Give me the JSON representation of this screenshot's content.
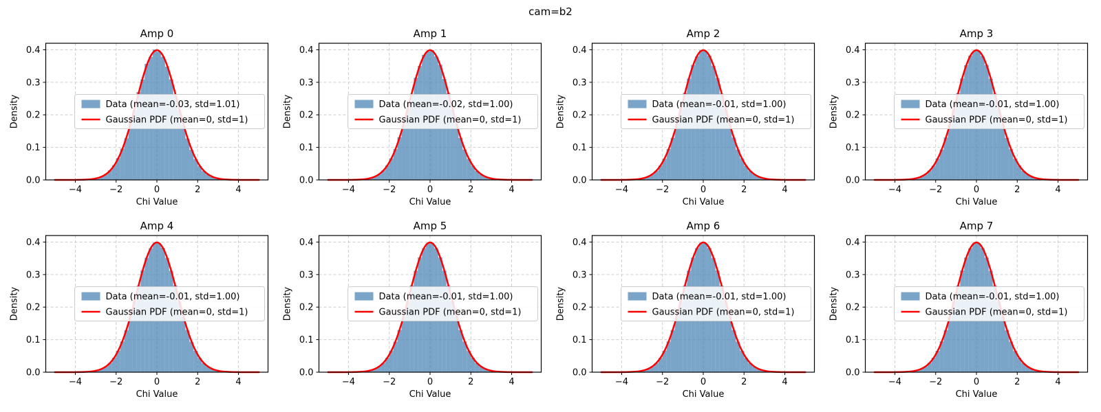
{
  "suptitle": "cam=b2",
  "colors": {
    "hist_fill": "rgba(70,130,180,0.72)",
    "hist_base": "#4682B4",
    "gauss_line": "#ff0000",
    "grid": "#cdcdcd",
    "spine": "#000000",
    "legend_bg": "rgba(255,255,255,0.85)",
    "legend_border": "#cccccc",
    "background": "#ffffff"
  },
  "axes_common": {
    "xlabel": "Chi Value",
    "ylabel": "Density",
    "xticks": [
      -4,
      -2,
      0,
      2,
      4
    ],
    "yticks": [
      0.0,
      0.1,
      0.2,
      0.3,
      0.4
    ],
    "xlim": [
      -5.45,
      5.45
    ],
    "ylim": [
      0,
      0.42
    ],
    "grid": true,
    "grid_style": "dashed",
    "legend_loc": "center right"
  },
  "hist_common": {
    "bin_start": -5,
    "bin_width": 0.2,
    "n_bins": 50
  },
  "gaussian": {
    "mean": 0,
    "std": 1
  },
  "chart_data": [
    {
      "type": "histogram",
      "title": "Amp 0",
      "stats": {
        "mean": -0.03,
        "std": 1.01
      },
      "legend": [
        "Data (mean=-0.03, std=1.01)",
        "Gaussian PDF (mean=0, std=1)"
      ],
      "hist": [
        0.0,
        0.0,
        0.0001,
        0.0001,
        0.0002,
        0.0003,
        0.0006,
        0.0011,
        0.002,
        0.0036,
        0.0066,
        0.0112,
        0.0181,
        0.0297,
        0.0452,
        0.0671,
        0.0962,
        0.1281,
        0.1756,
        0.2145,
        0.2703,
        0.309,
        0.3568,
        0.3783,
        0.4005,
        0.3942,
        0.3788,
        0.3481,
        0.3091,
        0.2633,
        0.2141,
        0.1693,
        0.1273,
        0.0923,
        0.0641,
        0.0428,
        0.0271,
        0.0168,
        0.0098,
        0.0057,
        0.003,
        0.0016,
        0.0008,
        0.0004,
        0.0002,
        0.0001,
        0.0,
        0.0,
        0.0,
        0.0
      ]
    },
    {
      "type": "histogram",
      "title": "Amp 1",
      "stats": {
        "mean": -0.02,
        "std": 1.0
      },
      "legend": [
        "Data (mean=-0.02, std=1.00)",
        "Gaussian PDF (mean=0, std=1)"
      ],
      "hist": [
        0.0,
        0.0,
        0.0,
        0.0001,
        0.0001,
        0.0002,
        0.0005,
        0.001,
        0.0018,
        0.0031,
        0.0063,
        0.0109,
        0.0172,
        0.029,
        0.0447,
        0.0663,
        0.0948,
        0.1312,
        0.1701,
        0.2202,
        0.2645,
        0.314,
        0.3505,
        0.3842,
        0.3951,
        0.3988,
        0.3796,
        0.3538,
        0.3101,
        0.2672,
        0.2158,
        0.1722,
        0.1288,
        0.0931,
        0.0648,
        0.0433,
        0.0279,
        0.0171,
        0.0101,
        0.0058,
        0.0032,
        0.0016,
        0.0009,
        0.0004,
        0.0002,
        0.0001,
        0.0,
        0.0,
        0.0,
        0.0
      ]
    },
    {
      "type": "histogram",
      "title": "Amp 2",
      "stats": {
        "mean": -0.01,
        "std": 1.0
      },
      "legend": [
        "Data (mean=-0.01, std=1.00)",
        "Gaussian PDF (mean=0, std=1)"
      ],
      "hist": [
        0.0,
        0.0,
        0.0,
        0.0001,
        0.0001,
        0.0002,
        0.0004,
        0.0009,
        0.0018,
        0.0034,
        0.0058,
        0.0106,
        0.0178,
        0.0281,
        0.0443,
        0.065,
        0.0947,
        0.1289,
        0.1721,
        0.2168,
        0.2675,
        0.3115,
        0.3532,
        0.3801,
        0.3982,
        0.3961,
        0.3822,
        0.351,
        0.3131,
        0.2652,
        0.2187,
        0.1705,
        0.1301,
        0.0934,
        0.066,
        0.0436,
        0.0281,
        0.0173,
        0.0103,
        0.0061,
        0.0032,
        0.0017,
        0.0009,
        0.0004,
        0.0002,
        0.0001,
        0.0,
        0.0,
        0.0,
        0.0
      ]
    },
    {
      "type": "histogram",
      "title": "Amp 3",
      "stats": {
        "mean": -0.01,
        "std": 1.0
      },
      "legend": [
        "Data (mean=-0.01, std=1.00)",
        "Gaussian PDF (mean=0, std=1)"
      ],
      "hist": [
        0.0,
        0.0,
        0.0,
        0.0,
        0.0001,
        0.0003,
        0.0005,
        0.0009,
        0.0016,
        0.0032,
        0.0062,
        0.0101,
        0.0176,
        0.0287,
        0.0436,
        0.0661,
        0.0933,
        0.1302,
        0.1708,
        0.2186,
        0.2668,
        0.3118,
        0.3526,
        0.3822,
        0.3958,
        0.3975,
        0.3808,
        0.3529,
        0.3112,
        0.2649,
        0.2172,
        0.1719,
        0.1289,
        0.0945,
        0.0652,
        0.0444,
        0.0278,
        0.0176,
        0.0102,
        0.0059,
        0.0033,
        0.0018,
        0.0008,
        0.0004,
        0.0002,
        0.0001,
        0.0,
        0.0,
        0.0,
        0.0
      ]
    },
    {
      "type": "histogram",
      "title": "Amp 4",
      "stats": {
        "mean": -0.01,
        "std": 1.0
      },
      "legend": [
        "Data (mean=-0.01, std=1.00)",
        "Gaussian PDF (mean=0, std=1)"
      ],
      "hist": [
        0.0,
        0.0,
        0.0,
        0.0001,
        0.0001,
        0.0002,
        0.0004,
        0.001,
        0.0017,
        0.0033,
        0.0061,
        0.0105,
        0.0173,
        0.0285,
        0.0445,
        0.0658,
        0.0944,
        0.129,
        0.1718,
        0.2175,
        0.2656,
        0.313,
        0.3516,
        0.3808,
        0.3976,
        0.3966,
        0.382,
        0.3515,
        0.3118,
        0.2668,
        0.2171,
        0.1709,
        0.1298,
        0.0936,
        0.0655,
        0.0438,
        0.028,
        0.0174,
        0.0103,
        0.0059,
        0.0032,
        0.0017,
        0.0009,
        0.0004,
        0.0002,
        0.0001,
        0.0,
        0.0,
        0.0,
        0.0
      ]
    },
    {
      "type": "histogram",
      "title": "Amp 5",
      "stats": {
        "mean": -0.01,
        "std": 1.0
      },
      "legend": [
        "Data (mean=-0.01, std=1.00)",
        "Gaussian PDF (mean=0, std=1)"
      ],
      "hist": [
        0.0,
        0.0,
        0.0,
        0.0,
        0.0001,
        0.0002,
        0.0005,
        0.0009,
        0.0018,
        0.0032,
        0.0059,
        0.0107,
        0.0177,
        0.0282,
        0.0441,
        0.0662,
        0.0938,
        0.1297,
        0.1712,
        0.2183,
        0.2667,
        0.3117,
        0.3528,
        0.381,
        0.3969,
        0.3973,
        0.3812,
        0.3524,
        0.312,
        0.2655,
        0.2181,
        0.1712,
        0.1293,
        0.0941,
        0.0653,
        0.0441,
        0.0282,
        0.0174,
        0.0104,
        0.006,
        0.0033,
        0.0017,
        0.0009,
        0.0004,
        0.0002,
        0.0001,
        0.0,
        0.0,
        0.0,
        0.0
      ]
    },
    {
      "type": "histogram",
      "title": "Amp 6",
      "stats": {
        "mean": -0.01,
        "std": 1.0
      },
      "legend": [
        "Data (mean=-0.01, std=1.00)",
        "Gaussian PDF (mean=0, std=1)"
      ],
      "hist": [
        0.0,
        0.0,
        0.0,
        0.0001,
        0.0001,
        0.0002,
        0.0004,
        0.0009,
        0.0017,
        0.0033,
        0.006,
        0.0103,
        0.0176,
        0.0284,
        0.0438,
        0.066,
        0.0941,
        0.1292,
        0.1716,
        0.2172,
        0.2662,
        0.3121,
        0.3519,
        0.3815,
        0.3972,
        0.3964,
        0.3818,
        0.3512,
        0.3125,
        0.2659,
        0.2176,
        0.1707,
        0.1296,
        0.0938,
        0.0657,
        0.0437,
        0.0279,
        0.0172,
        0.0102,
        0.006,
        0.0032,
        0.0016,
        0.0008,
        0.0004,
        0.0002,
        0.0001,
        0.0,
        0.0,
        0.0,
        0.0
      ]
    },
    {
      "type": "histogram",
      "title": "Amp 7",
      "stats": {
        "mean": -0.01,
        "std": 1.0
      },
      "legend": [
        "Data (mean=-0.01, std=1.00)",
        "Gaussian PDF (mean=0, std=1)"
      ],
      "hist": [
        0.0,
        0.0,
        0.0,
        0.0,
        0.0001,
        0.0002,
        0.0005,
        0.001,
        0.0018,
        0.0031,
        0.0061,
        0.0106,
        0.0174,
        0.0286,
        0.0442,
        0.0655,
        0.0945,
        0.1294,
        0.1719,
        0.218,
        0.2659,
        0.3126,
        0.3523,
        0.3812,
        0.3966,
        0.397,
        0.3815,
        0.352,
        0.3116,
        0.2663,
        0.2179,
        0.1715,
        0.1291,
        0.094,
        0.0654,
        0.0439,
        0.0281,
        0.0175,
        0.0103,
        0.0058,
        0.0031,
        0.0017,
        0.0009,
        0.0004,
        0.0002,
        0.0001,
        0.0,
        0.0,
        0.0,
        0.0
      ]
    }
  ]
}
